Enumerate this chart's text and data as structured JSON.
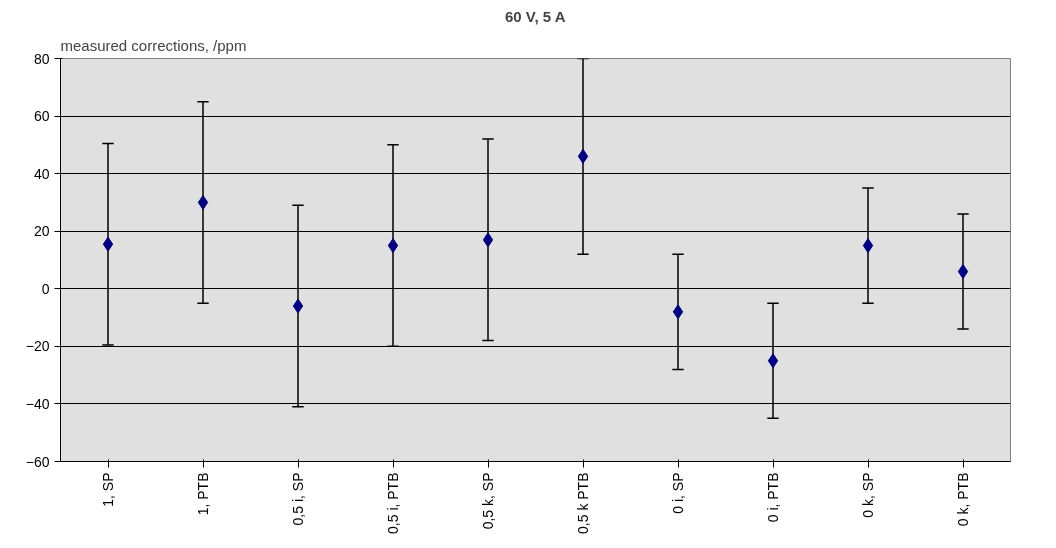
{
  "chart_data": {
    "type": "scatter",
    "title": "60 V, 5 A",
    "ylabel": "measured corrections, /ppm",
    "categories": [
      "1, SP",
      "1, PTB",
      "0,5 i, SP",
      "0,5 i, PTB",
      "0,5 k, SP",
      "0,5 k PTB",
      "0 i, SP",
      "0 i, PTB",
      "0 k, SP",
      "0 k, PTB"
    ],
    "values": [
      15.5,
      30,
      -6,
      15,
      17,
      46,
      -8,
      -25,
      15,
      6
    ],
    "errors": [
      35,
      35,
      35,
      35,
      35,
      34,
      20,
      20,
      20,
      20
    ],
    "color": "#000080",
    "marker": "diamond",
    "ylim": [
      -60,
      80
    ],
    "yticks": [
      -60,
      -40,
      -20,
      0,
      20,
      40,
      60,
      80
    ],
    "grid": "y"
  }
}
